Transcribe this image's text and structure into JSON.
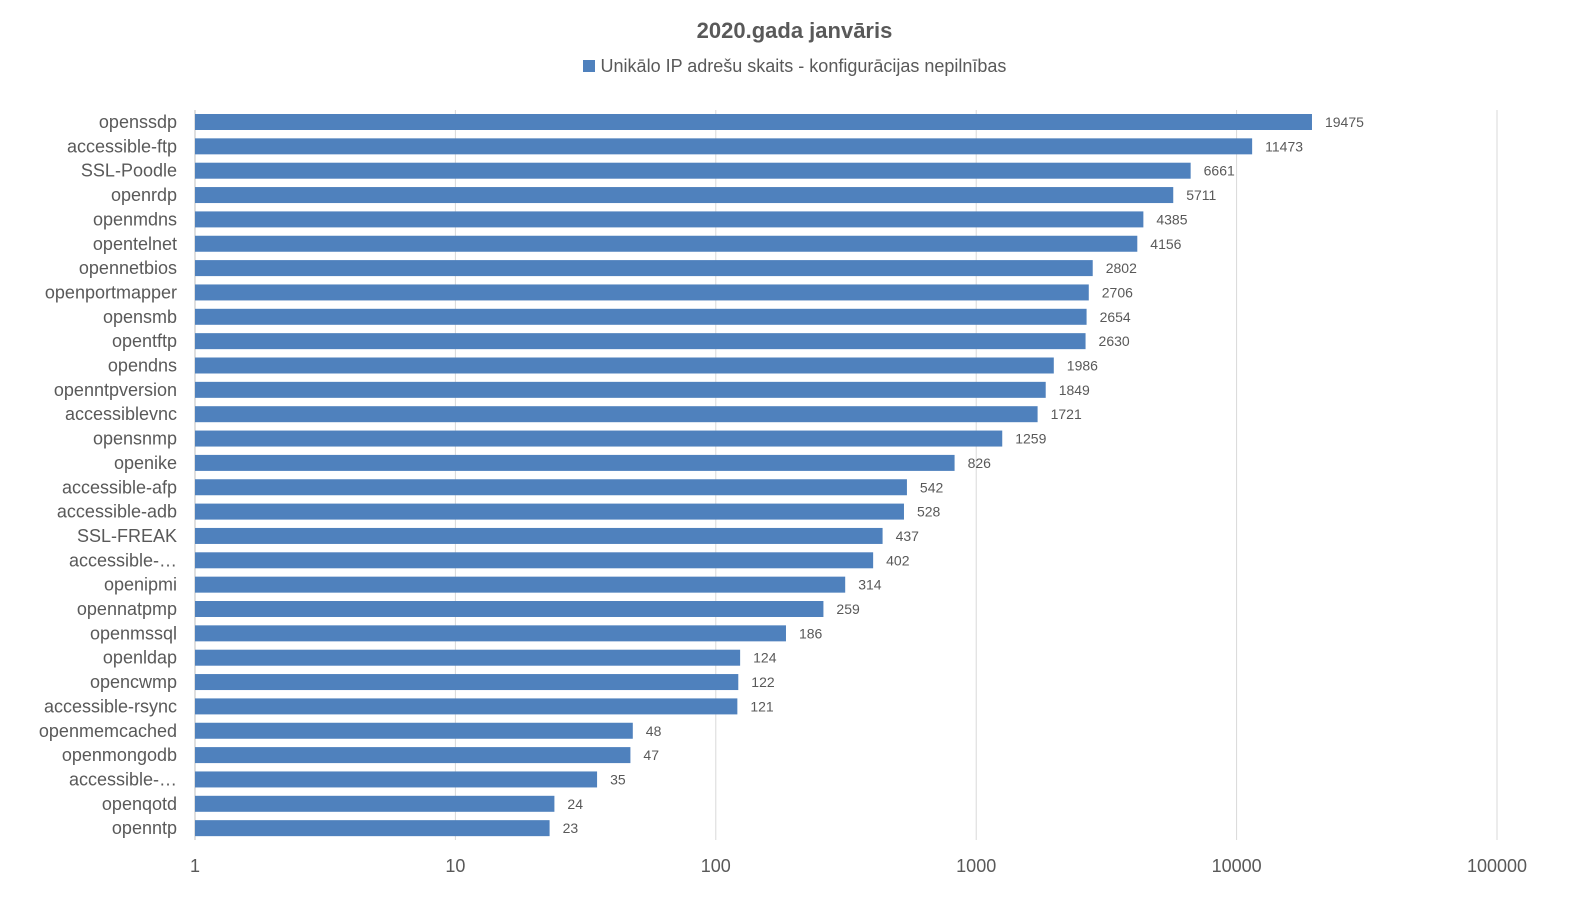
{
  "chart_data": {
    "type": "bar",
    "orientation": "horizontal",
    "title": "2020.gada janvāris",
    "legend_label": "Unikālo IP adrešu skaits  -  konfigurācijas nepilnības",
    "legend_position": "top",
    "x_scale": "log",
    "xlim": [
      1,
      100000
    ],
    "x_ticks": [
      1,
      10,
      100,
      1000,
      10000,
      100000
    ],
    "x_tick_labels": [
      "1",
      "10",
      "100",
      "1000",
      "10000",
      "100000"
    ],
    "grid": true,
    "bar_color": "#4f81bd",
    "categories": [
      "openssdp",
      "accessible-ftp",
      "SSL-Poodle",
      "openrdp",
      "openmdns",
      "opentelnet",
      "opennetbios",
      "openportmapper",
      "opensmb",
      "opentftp",
      "opendns",
      "openntpversion",
      "accessiblevnc",
      "opensnmp",
      "openike",
      "accessible-afp",
      "accessible-adb",
      "SSL-FREAK",
      "accessible-…",
      "openipmi",
      "opennatpmp",
      "openmssql",
      "openldap",
      "opencwmp",
      "accessible-rsync",
      "openmemcached",
      "openmongodb",
      "accessible-…",
      "openqotd",
      "openntp"
    ],
    "values": [
      19475,
      11473,
      6661,
      5711,
      4385,
      4156,
      2802,
      2706,
      2654,
      2630,
      1986,
      1849,
      1721,
      1259,
      826,
      542,
      528,
      437,
      402,
      314,
      259,
      186,
      124,
      122,
      121,
      48,
      47,
      35,
      24,
      23
    ]
  }
}
